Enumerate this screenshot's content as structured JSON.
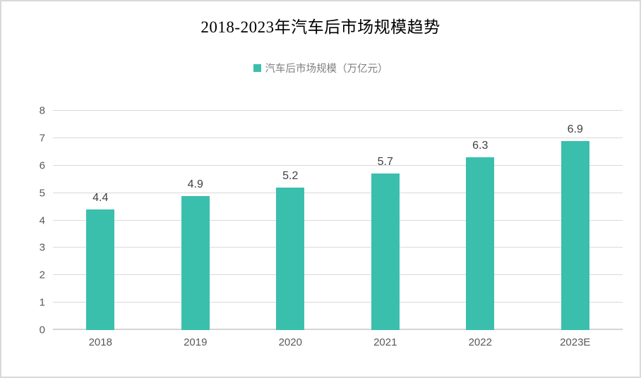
{
  "title": "2018-2023年汽车后市场规模趋势",
  "legend": {
    "label": "汽车后市场规模（万亿元）",
    "swatch_color": "#3bbfad"
  },
  "colors": {
    "bar": "#3bbfad",
    "gridline": "#d9d9d9",
    "baseline": "#d4d4d4",
    "axis_label": "#595959",
    "data_label": "#404040",
    "legend_text": "#7f7f7f",
    "frame_border": "#d9d9d9",
    "title_text": "#000000"
  },
  "chart_data": {
    "type": "bar",
    "title": "2018-2023年汽车后市场规模趋势",
    "categories": [
      "2018",
      "2019",
      "2020",
      "2021",
      "2022",
      "2023E"
    ],
    "values": [
      4.4,
      4.9,
      5.2,
      5.7,
      6.3,
      6.9
    ],
    "labels": [
      "4.4",
      "4.9",
      "5.2",
      "5.7",
      "6.3",
      "6.9"
    ],
    "series_name": "汽车后市场规模（万亿元）",
    "xlabel": "",
    "ylabel": "",
    "ylim": [
      0,
      8
    ],
    "yticks": [
      0,
      1,
      2,
      3,
      4,
      5,
      6,
      7,
      8
    ],
    "grid": "horizontal",
    "legend_position": "top",
    "data_labels_shown": true
  }
}
